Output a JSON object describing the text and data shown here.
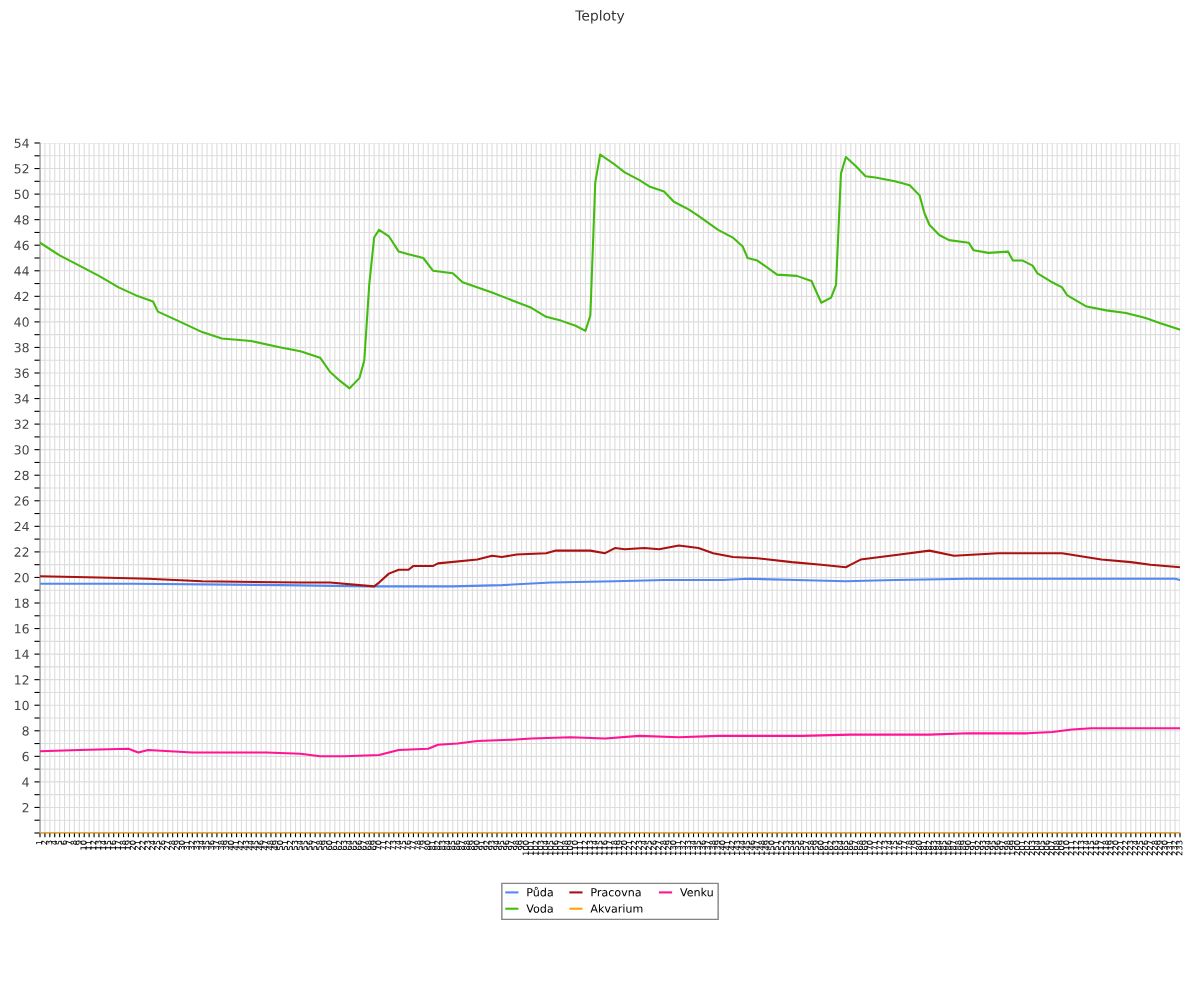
{
  "chart_data": {
    "type": "line",
    "title": "Teploty",
    "xlim": [
      1,
      233
    ],
    "xticks": [
      1,
      2,
      3,
      4,
      5,
      6,
      7,
      8,
      9,
      10,
      11,
      12,
      13,
      14,
      15,
      16,
      17,
      18,
      19,
      20,
      21,
      22,
      23,
      24,
      25,
      26,
      27,
      28,
      29,
      30,
      31,
      32,
      33,
      34,
      35,
      36,
      37,
      38,
      39,
      40,
      41,
      42,
      43,
      44,
      45,
      46,
      47,
      48,
      49,
      50,
      51,
      52,
      53,
      54,
      55,
      56,
      57,
      58,
      59,
      60,
      61,
      62,
      63,
      64,
      65,
      66,
      67,
      68,
      69,
      70,
      71,
      72,
      73,
      74,
      75,
      76,
      77,
      78,
      79,
      80,
      81,
      82,
      83,
      84,
      85,
      86,
      87,
      88,
      89,
      90,
      91,
      92,
      93,
      94,
      95,
      96,
      97,
      98,
      99,
      100,
      101,
      102,
      103,
      104,
      105,
      106,
      107,
      108,
      109,
      110,
      111,
      112,
      113,
      114,
      115,
      116,
      117,
      118,
      119,
      120,
      121,
      122,
      123,
      124,
      125,
      126,
      127,
      128,
      129,
      130,
      131,
      132,
      133,
      134,
      135,
      136,
      137,
      138,
      139,
      140,
      141,
      142,
      143,
      144,
      145,
      146,
      147,
      148,
      149,
      150,
      151,
      152,
      153,
      154,
      155,
      156,
      157,
      158,
      159,
      160,
      161,
      162,
      163,
      164,
      165,
      166,
      167,
      168,
      169,
      170,
      171,
      172,
      173,
      174,
      175,
      176,
      177,
      178,
      179,
      180,
      181,
      182,
      183,
      184,
      185,
      186,
      187,
      188,
      189,
      190,
      191,
      192,
      193,
      194,
      195,
      196,
      197,
      198,
      199,
      200,
      201,
      202,
      203,
      204,
      205,
      206,
      207,
      208,
      209,
      210,
      211,
      212,
      213,
      214,
      215,
      216,
      217,
      218,
      219,
      220,
      221,
      222,
      223,
      224,
      225,
      226,
      227,
      228,
      229,
      230,
      231,
      232,
      233
    ],
    "ylim": [
      0,
      54
    ],
    "yticks": [
      {
        "value": 0,
        "label": null
      },
      {
        "value": 1,
        "label": null
      },
      2,
      {
        "value": 3,
        "label": null
      },
      4,
      {
        "value": 5,
        "label": null
      },
      6,
      {
        "value": 7,
        "label": null
      },
      8,
      {
        "value": 9,
        "label": null
      },
      10,
      {
        "value": 11,
        "label": null
      },
      12,
      {
        "value": 13,
        "label": null
      },
      14,
      {
        "value": 15,
        "label": null
      },
      16,
      {
        "value": 17,
        "label": null
      },
      18,
      {
        "value": 19,
        "label": null
      },
      20,
      {
        "value": 21,
        "label": null
      },
      22,
      {
        "value": 23,
        "label": null
      },
      24,
      {
        "value": 25,
        "label": null
      },
      26,
      {
        "value": 27,
        "label": null
      },
      28,
      {
        "value": 29,
        "label": null
      },
      30,
      {
        "value": 31,
        "label": null
      },
      32,
      {
        "value": 33,
        "label": null
      },
      34,
      {
        "value": 35,
        "label": null
      },
      36,
      {
        "value": 37,
        "label": null
      },
      38,
      {
        "value": 39,
        "label": null
      },
      40,
      {
        "value": 41,
        "label": null
      },
      42,
      {
        "value": 43,
        "label": null
      },
      44,
      {
        "value": 45,
        "label": null
      },
      46,
      {
        "value": 47,
        "label": null
      },
      48,
      {
        "value": 49,
        "label": null
      },
      50,
      {
        "value": 51,
        "label": null
      },
      52,
      {
        "value": 53,
        "label": null
      },
      54
    ],
    "grid": true,
    "legend": "bottom",
    "marker": "none",
    "line_style": "solid",
    "series": [
      {
        "name": "Půda",
        "color": "#5588ee",
        "x": [
          1,
          20,
          50,
          68,
          85,
          95,
          105,
          118,
          128,
          140,
          145,
          155,
          165,
          175,
          190,
          200,
          232,
          233
        ],
        "values": [
          19.5,
          19.5,
          19.4,
          19.3,
          19.3,
          19.4,
          19.6,
          19.7,
          19.8,
          19.8,
          19.9,
          19.8,
          19.7,
          19.8,
          19.9,
          19.9,
          19.9,
          19.8
        ]
      },
      {
        "name": "Voda",
        "color": "#44bb11",
        "x": [
          1,
          5,
          9,
          13,
          17,
          21,
          24,
          25,
          29,
          34,
          38,
          44,
          50,
          54,
          58,
          60,
          62,
          64,
          66,
          67,
          68,
          69,
          70,
          72,
          74,
          76,
          79,
          81,
          85,
          87,
          93,
          97,
          101,
          104,
          107,
          110,
          112,
          113,
          114,
          115,
          118,
          120,
          123,
          125,
          128,
          130,
          133,
          135,
          139,
          142,
          144,
          145,
          147,
          151,
          155,
          158,
          160,
          162,
          163,
          164,
          165,
          167,
          169,
          171,
          175,
          178,
          180,
          181,
          182,
          184,
          186,
          190,
          191,
          194,
          198,
          199,
          201,
          203,
          204,
          207,
          209,
          210,
          214,
          218,
          222,
          226,
          229,
          233
        ],
        "values": [
          46.2,
          45.2,
          44.4,
          43.6,
          42.7,
          42.0,
          41.6,
          40.8,
          40.1,
          39.2,
          38.7,
          38.5,
          38.0,
          37.7,
          37.2,
          36.1,
          35.4,
          34.8,
          35.6,
          37.0,
          42.9,
          46.6,
          47.2,
          46.7,
          45.5,
          45.3,
          45.0,
          44.0,
          43.8,
          43.1,
          42.3,
          41.7,
          41.1,
          40.4,
          40.1,
          39.7,
          39.3,
          40.5,
          50.9,
          53.1,
          52.3,
          51.7,
          51.1,
          50.6,
          50.2,
          49.4,
          48.8,
          48.3,
          47.2,
          46.6,
          45.9,
          45.0,
          44.8,
          43.7,
          43.6,
          43.2,
          41.5,
          41.9,
          42.9,
          51.6,
          52.9,
          52.2,
          51.4,
          51.3,
          51.0,
          50.7,
          49.9,
          48.5,
          47.6,
          46.8,
          46.4,
          46.2,
          45.6,
          45.4,
          45.5,
          44.8,
          44.8,
          44.4,
          43.8,
          43.1,
          42.7,
          42.1,
          41.2,
          40.9,
          40.7,
          40.3,
          39.9,
          39.4
        ]
      },
      {
        "name": "Pracovna",
        "color": "#aa1111",
        "x": [
          1,
          13,
          23,
          34,
          54,
          60,
          69,
          70,
          72,
          74,
          76,
          77,
          81,
          82,
          90,
          93,
          95,
          98,
          104,
          106,
          110,
          113,
          116,
          118,
          120,
          124,
          127,
          131,
          135,
          138,
          142,
          147,
          154,
          160,
          165,
          166,
          168,
          172,
          176,
          182,
          187,
          196,
          209,
          217,
          223,
          227,
          233
        ],
        "values": [
          20.1,
          20.0,
          19.9,
          19.7,
          19.6,
          19.6,
          19.3,
          19.6,
          20.3,
          20.6,
          20.6,
          20.9,
          20.9,
          21.1,
          21.4,
          21.7,
          21.6,
          21.8,
          21.9,
          22.1,
          22.1,
          22.1,
          21.9,
          22.3,
          22.2,
          22.3,
          22.2,
          22.5,
          22.3,
          21.9,
          21.6,
          21.5,
          21.2,
          21.0,
          20.8,
          21.0,
          21.4,
          21.6,
          21.8,
          22.1,
          21.7,
          21.9,
          21.9,
          21.4,
          21.2,
          21.0,
          20.8
        ]
      },
      {
        "name": "Akvarium",
        "color": "#ffa500",
        "x": [
          1,
          233
        ],
        "values": [
          0,
          0
        ]
      },
      {
        "name": "Venku",
        "color": "#ff1493",
        "x": [
          1,
          9,
          19,
          21,
          23,
          32,
          40,
          47,
          54,
          58,
          63,
          70,
          74,
          80,
          82,
          86,
          90,
          97,
          101,
          109,
          116,
          123,
          131,
          139,
          148,
          156,
          166,
          176,
          182,
          190,
          202,
          207,
          211,
          215,
          233
        ],
        "values": [
          6.4,
          6.5,
          6.6,
          6.3,
          6.5,
          6.3,
          6.3,
          6.3,
          6.2,
          6.0,
          6.0,
          6.1,
          6.5,
          6.6,
          6.9,
          7.0,
          7.2,
          7.3,
          7.4,
          7.5,
          7.4,
          7.6,
          7.5,
          7.6,
          7.6,
          7.6,
          7.7,
          7.7,
          7.7,
          7.8,
          7.8,
          7.9,
          8.1,
          8.2,
          8.2
        ]
      }
    ]
  }
}
